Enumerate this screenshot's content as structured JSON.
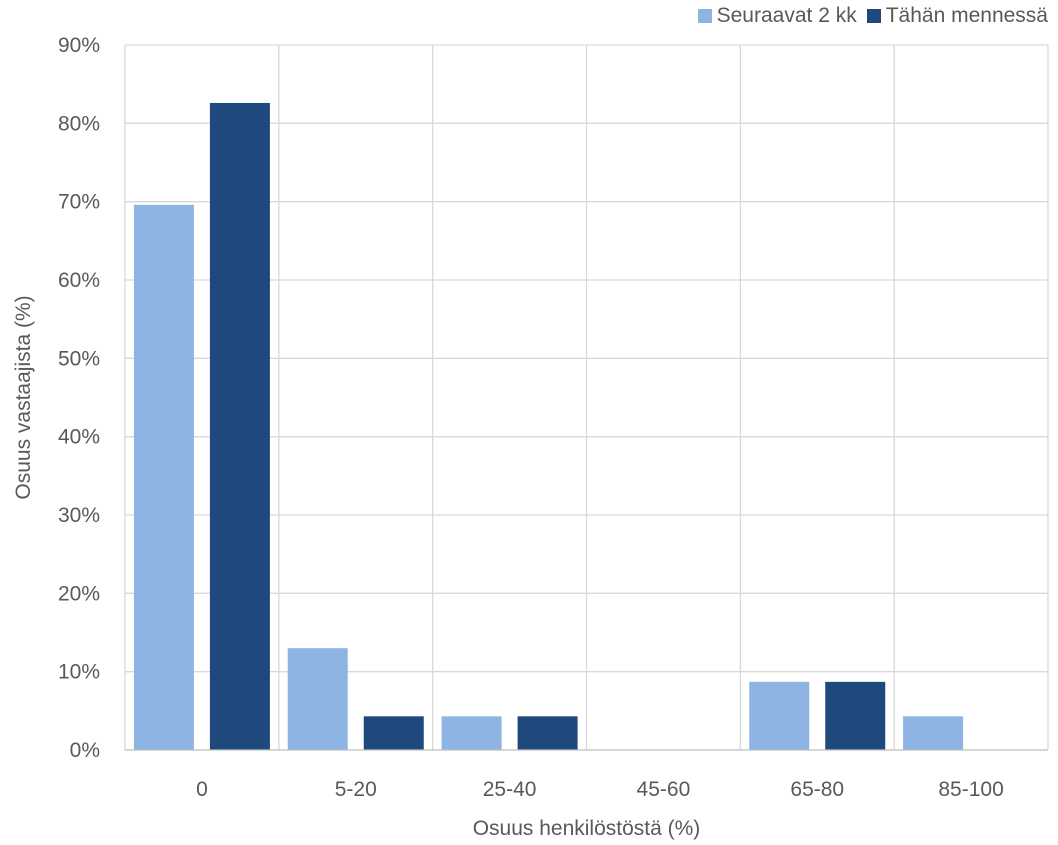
{
  "chart_data": {
    "type": "bar",
    "xlabel": "Osuus henkilöstöstä (%)",
    "ylabel": "Osuus vastaajista (%)",
    "categories": [
      "0",
      "5-20",
      "25-40",
      "45-60",
      "65-80",
      "85-100"
    ],
    "series": [
      {
        "name": "Seuraavat 2 kk",
        "color": "#8EB4E3",
        "values": [
          69.6,
          13.0,
          4.3,
          0,
          8.7,
          4.3
        ]
      },
      {
        "name": "Tähän mennessä",
        "color": "#1F497D",
        "values": [
          82.6,
          4.3,
          4.3,
          0,
          8.7,
          0
        ]
      }
    ],
    "ylim": [
      0,
      90
    ],
    "yticks": [
      "0%",
      "10%",
      "20%",
      "30%",
      "40%",
      "50%",
      "60%",
      "70%",
      "80%",
      "90%"
    ],
    "grid": true,
    "legend_position": "top-right"
  }
}
